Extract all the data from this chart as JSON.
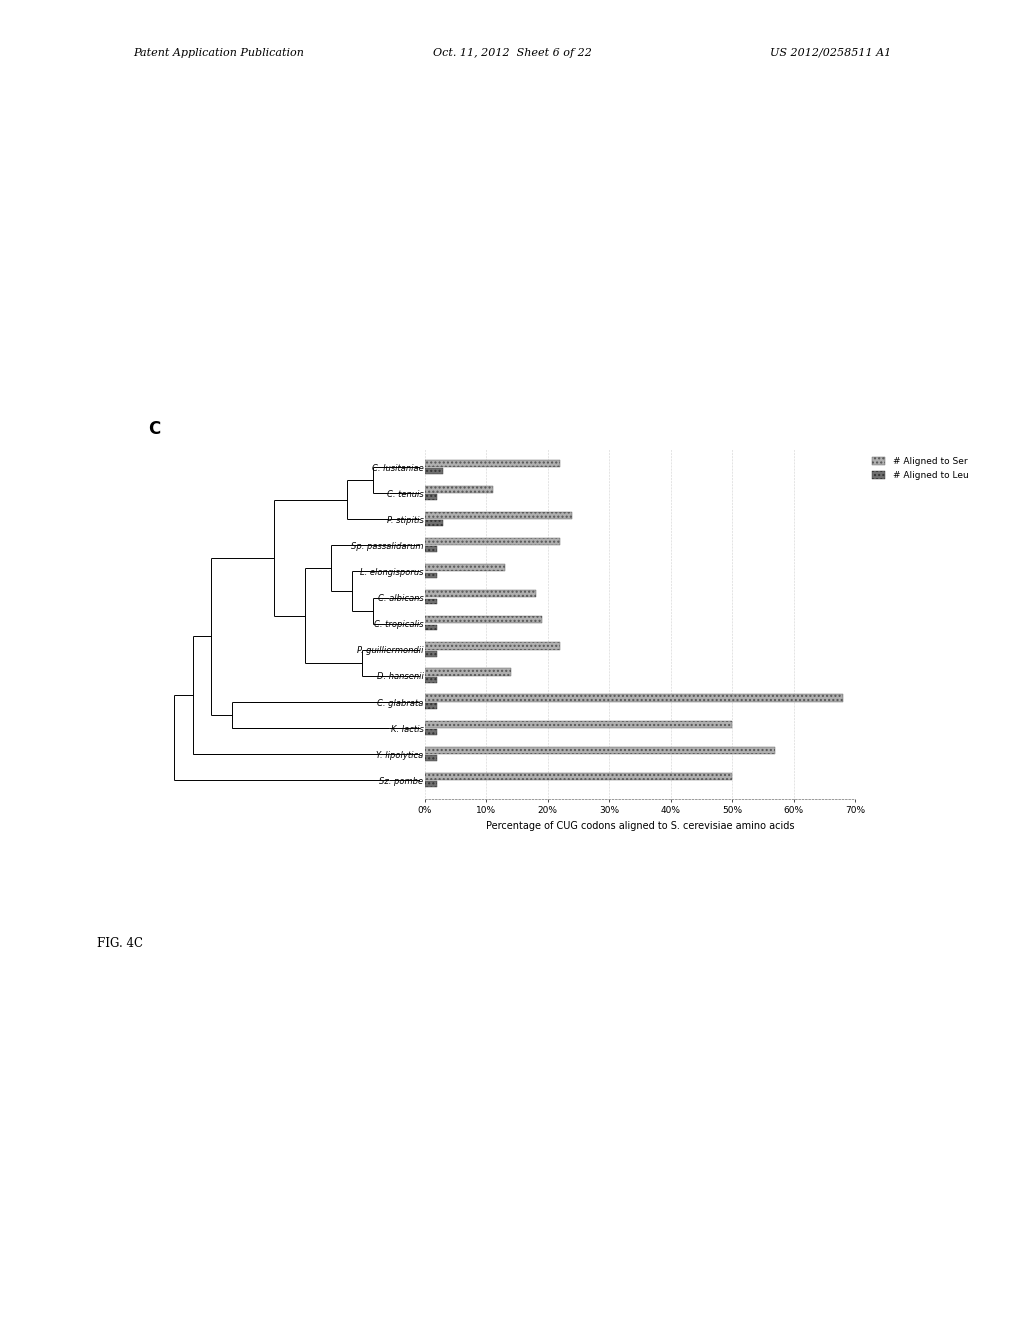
{
  "panel_label": "C",
  "species": [
    "C. lusitaniae",
    "C. tenuis",
    "P. stipitis",
    "Sp. passalidarum",
    "L. elongisporus",
    "C. albicans",
    "C. tropicalis",
    "P. guilliermondii",
    "D. hansenii",
    "C. glabrata",
    "K. lactis",
    "Y. lipolytica",
    "Sz. pombe"
  ],
  "ser_values": [
    22,
    11,
    24,
    22,
    13,
    18,
    19,
    22,
    14,
    68,
    50,
    57,
    50
  ],
  "leu_values": [
    3,
    2,
    3,
    2,
    2,
    2,
    2,
    2,
    2,
    2,
    2,
    2,
    2
  ],
  "bar_color_ser": "#b0b0b0",
  "bar_color_leu": "#707070",
  "bar_hatch_ser": "....",
  "bar_hatch_leu": "....",
  "xlabel": "Percentage of CUG codons aligned to S. cerevisiae amino acids",
  "xlim": [
    0,
    70
  ],
  "xtick_labels": [
    "0%",
    "10%",
    "20%",
    "30%",
    "40%",
    "50%",
    "60%",
    "70%"
  ],
  "xtick_values": [
    0,
    10,
    20,
    30,
    40,
    50,
    60,
    70
  ],
  "legend_ser": "# Aligned to Ser",
  "legend_leu": "# Aligned to Leu",
  "background_color": "#ffffff",
  "fig_label": "FIG. 4C",
  "header_left": "Patent Application Publication",
  "header_mid": "Oct. 11, 2012  Sheet 6 of 22",
  "header_right": "US 2012/0258511 A1"
}
